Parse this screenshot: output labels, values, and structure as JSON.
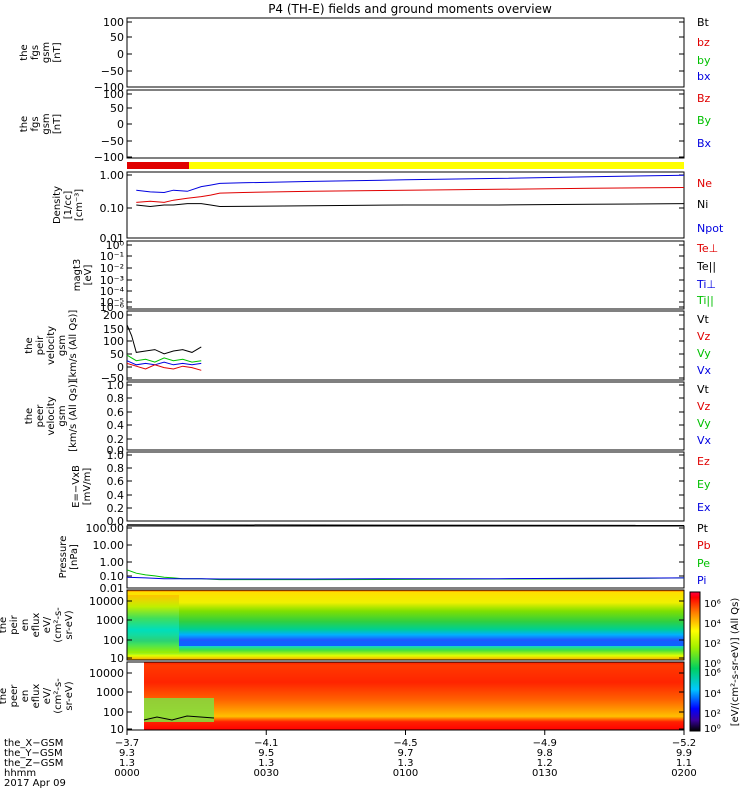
{
  "title": "P4 (TH-E) fields and ground moments overview",
  "colors": {
    "black": "#000000",
    "red": "#e00000",
    "green": "#00c000",
    "blue": "#0000e0",
    "yellow": "#ffff00"
  },
  "panels": [
    {
      "id": "fgs-gsm",
      "ylabel": [
        "the",
        "fgs",
        "gsm",
        "[nT]"
      ],
      "ticks": [
        "100",
        "50",
        "0",
        "−50",
        "−100"
      ],
      "legend": [
        {
          "label": "Bt",
          "color": "black"
        },
        {
          "label": "bz",
          "color": "red"
        },
        {
          "label": "by",
          "color": "green"
        },
        {
          "label": "bx",
          "color": "blue"
        }
      ]
    },
    {
      "id": "fgs-gsm-2",
      "ylabel": [
        "the",
        "fgs",
        "gsm",
        "[nT]"
      ],
      "ticks": [
        "100",
        "50",
        "0",
        "−50",
        "−100"
      ],
      "legend": [
        {
          "label": "Bz",
          "color": "red"
        },
        {
          "label": "By",
          "color": "green"
        },
        {
          "label": "Bx",
          "color": "blue"
        }
      ]
    },
    {
      "id": "density",
      "ylabel": [
        "Density",
        "[1/cc]",
        "[cm⁻³]"
      ],
      "ticks": [
        "1.00",
        "0.10",
        "0.01"
      ],
      "legend": [
        {
          "label": "Ne",
          "color": "red"
        },
        {
          "label": "Ni",
          "color": "black"
        },
        {
          "label": "Npot",
          "color": "blue"
        }
      ]
    },
    {
      "id": "temperature",
      "ylabel": [
        "magt3",
        "[eV]"
      ],
      "ticks": [
        "10⁰",
        "10⁻¹",
        "10⁻²",
        "10⁻³",
        "10⁻⁴",
        "10⁻⁵",
        "10⁻⁶"
      ],
      "legend": [
        {
          "label": "Te⊥",
          "color": "red"
        },
        {
          "label": "Te||",
          "color": "black"
        },
        {
          "label": "Ti⊥",
          "color": "blue"
        },
        {
          "label": "Ti||",
          "color": "green"
        }
      ]
    },
    {
      "id": "peir-velocity",
      "ylabel": [
        "the",
        "peir",
        "velocity",
        "gsm",
        "[km/s (All Qs)]"
      ],
      "ticks": [
        "200",
        "150",
        "100",
        "50",
        "0",
        "−50"
      ],
      "legend": [
        {
          "label": "Vt",
          "color": "black"
        },
        {
          "label": "Vz",
          "color": "red"
        },
        {
          "label": "Vy",
          "color": "green"
        },
        {
          "label": "Vx",
          "color": "blue"
        }
      ]
    },
    {
      "id": "peer-velocity",
      "ylabel": [
        "the",
        "peer",
        "velocity",
        "gsm",
        "[km/s (All Qs)]"
      ],
      "ticks": [
        "1.0",
        "0.8",
        "0.6",
        "0.4",
        "0.2",
        "0.0"
      ],
      "legend": [
        {
          "label": "Vt",
          "color": "black"
        },
        {
          "label": "Vz",
          "color": "red"
        },
        {
          "label": "Vy",
          "color": "green"
        },
        {
          "label": "Vx",
          "color": "blue"
        }
      ]
    },
    {
      "id": "efield",
      "ylabel": [
        "E=−VxB",
        "[mV/m]"
      ],
      "ticks": [
        "1.0",
        "0.8",
        "0.6",
        "0.4",
        "0.2",
        "0.0"
      ],
      "legend": [
        {
          "label": "Ez",
          "color": "red"
        },
        {
          "label": "Ey",
          "color": "green"
        },
        {
          "label": "Ex",
          "color": "blue"
        }
      ]
    },
    {
      "id": "pressure",
      "ylabel": [
        "Pressure",
        "[nPa]"
      ],
      "ticks": [
        "100.00",
        "10.00",
        "1.00",
        "0.10",
        "0.01"
      ],
      "legend": [
        {
          "label": "Pt",
          "color": "black"
        },
        {
          "label": "Pb",
          "color": "red"
        },
        {
          "label": "Pe",
          "color": "green"
        },
        {
          "label": "Pi",
          "color": "blue"
        }
      ]
    },
    {
      "id": "peir-eflux",
      "ylabel": [
        "the",
        "peir",
        "en",
        "eflux",
        "eV/",
        "(cm²-s-",
        "sr-eV)"
      ],
      "ticks": [
        "10000",
        "1000",
        "100",
        "10"
      ]
    },
    {
      "id": "peer-eflux",
      "ylabel": [
        "the",
        "peer",
        "en",
        "eflux",
        "eV/",
        "(cm²-s-",
        "sr-eV)"
      ],
      "ticks": [
        "10000",
        "1000",
        "100",
        "10"
      ]
    }
  ],
  "colorbar": {
    "ticks_upper": [
      "10⁶",
      "10⁴",
      "10²",
      "10⁰"
    ],
    "ticks_lower": [
      "10⁶",
      "10⁴",
      "10²",
      "10⁰"
    ],
    "label": "[eV/(cm²-s-sr-eV)] (All Qs)"
  },
  "xaxis": {
    "row_labels": [
      "the_X−GSM",
      "the_Y−GSM",
      "the_Z−GSM",
      "hhmm",
      "2017 Apr 09"
    ],
    "columns": [
      {
        "t": 0,
        "values": [
          "−3.7",
          "9.3",
          "1.3",
          "0000"
        ]
      },
      {
        "t": 30,
        "values": [
          "−4.1",
          "9.5",
          "1.3",
          "0030"
        ]
      },
      {
        "t": 60,
        "values": [
          "−4.5",
          "9.7",
          "1.3",
          "0100"
        ]
      },
      {
        "t": 90,
        "values": [
          "−4.9",
          "9.8",
          "1.2",
          "0130"
        ]
      },
      {
        "t": 120,
        "values": [
          "−5.2",
          "9.9",
          "1.1",
          "0200"
        ]
      }
    ]
  },
  "chart_data": [
    {
      "type": "line",
      "panel": "fgs-gsm",
      "ylim": [
        -100,
        100
      ],
      "series": []
    },
    {
      "type": "line",
      "panel": "fgs-gsm-2",
      "ylim": [
        -100,
        100
      ],
      "series": []
    },
    {
      "type": "line",
      "panel": "density",
      "ylim": [
        0.01,
        1
      ],
      "yscale": "log",
      "xlim": [
        0,
        120
      ],
      "series": [
        {
          "name": "Npot",
          "color": "blue",
          "x": [
            2,
            5,
            8,
            10,
            13,
            16,
            18,
            20,
            25,
            40,
            60,
            80,
            100,
            120
          ],
          "y": [
            0.28,
            0.25,
            0.24,
            0.28,
            0.26,
            0.36,
            0.4,
            0.45,
            0.47,
            0.52,
            0.58,
            0.64,
            0.72,
            0.8
          ]
        },
        {
          "name": "Ne",
          "color": "red",
          "x": [
            2,
            5,
            8,
            10,
            13,
            16,
            18,
            20,
            25,
            40,
            60,
            80,
            100,
            120
          ],
          "y": [
            0.12,
            0.13,
            0.12,
            0.14,
            0.16,
            0.18,
            0.2,
            0.23,
            0.24,
            0.26,
            0.28,
            0.3,
            0.32,
            0.34
          ]
        },
        {
          "name": "Ni",
          "color": "black",
          "x": [
            2,
            5,
            8,
            10,
            13,
            16,
            18,
            20,
            40,
            60,
            80,
            100,
            120
          ],
          "y": [
            0.1,
            0.09,
            0.1,
            0.1,
            0.11,
            0.11,
            0.1,
            0.09,
            0.095,
            0.1,
            0.1,
            0.105,
            0.11
          ]
        }
      ]
    },
    {
      "type": "line",
      "panel": "temperature",
      "ylim": [
        1e-06,
        1
      ],
      "yscale": "log",
      "series": []
    },
    {
      "type": "line",
      "panel": "peir-velocity",
      "ylim": [
        -50,
        200
      ],
      "xlim": [
        0,
        120
      ],
      "series": [
        {
          "name": "Vt",
          "color": "black",
          "x": [
            0,
            1,
            2,
            4,
            6,
            8,
            10,
            12,
            14,
            16
          ],
          "y": [
            150,
            110,
            50,
            55,
            60,
            45,
            55,
            60,
            50,
            70
          ]
        },
        {
          "name": "Vy",
          "color": "green",
          "x": [
            0,
            2,
            4,
            6,
            8,
            10,
            12,
            14,
            16
          ],
          "y": [
            40,
            20,
            25,
            15,
            30,
            20,
            25,
            15,
            20
          ]
        },
        {
          "name": "Vx",
          "color": "blue",
          "x": [
            0,
            2,
            4,
            6,
            8,
            10,
            12,
            14,
            16
          ],
          "y": [
            20,
            5,
            10,
            5,
            15,
            5,
            10,
            5,
            10
          ]
        },
        {
          "name": "Vz",
          "color": "red",
          "x": [
            0,
            2,
            4,
            6,
            8,
            10,
            12,
            14,
            16
          ],
          "y": [
            10,
            0,
            -10,
            5,
            -5,
            -10,
            0,
            -5,
            -15
          ]
        }
      ]
    },
    {
      "type": "line",
      "panel": "peer-velocity",
      "ylim": [
        0,
        1
      ],
      "series": []
    },
    {
      "type": "line",
      "panel": "efield",
      "ylim": [
        0,
        1
      ],
      "series": []
    },
    {
      "type": "line",
      "panel": "pressure",
      "ylim": [
        0.01,
        100
      ],
      "yscale": "log",
      "xlim": [
        0,
        120
      ],
      "series": [
        {
          "name": "Pt",
          "color": "black",
          "x": [
            0,
            120
          ],
          "y": [
            120,
            110
          ]
        },
        {
          "name": "Pe",
          "color": "green",
          "x": [
            0,
            2,
            4,
            6,
            8,
            10,
            12,
            16,
            20,
            40,
            60,
            80,
            100,
            120
          ],
          "y": [
            0.15,
            0.09,
            0.07,
            0.06,
            0.05,
            0.045,
            0.04,
            0.04,
            0.035,
            0.035,
            0.036,
            0.038,
            0.04,
            0.045
          ]
        },
        {
          "name": "Pi",
          "color": "blue",
          "x": [
            0,
            4,
            8,
            12,
            16,
            20,
            40,
            60,
            80,
            100,
            120
          ],
          "y": [
            0.05,
            0.045,
            0.04,
            0.04,
            0.04,
            0.038,
            0.038,
            0.04,
            0.04,
            0.042,
            0.045
          ]
        }
      ]
    },
    {
      "type": "heatmap",
      "panel": "peir-eflux",
      "ylim": [
        5,
        20000
      ],
      "yscale": "log"
    },
    {
      "type": "heatmap",
      "panel": "peer-eflux",
      "ylim": [
        5,
        20000
      ],
      "yscale": "log"
    }
  ]
}
